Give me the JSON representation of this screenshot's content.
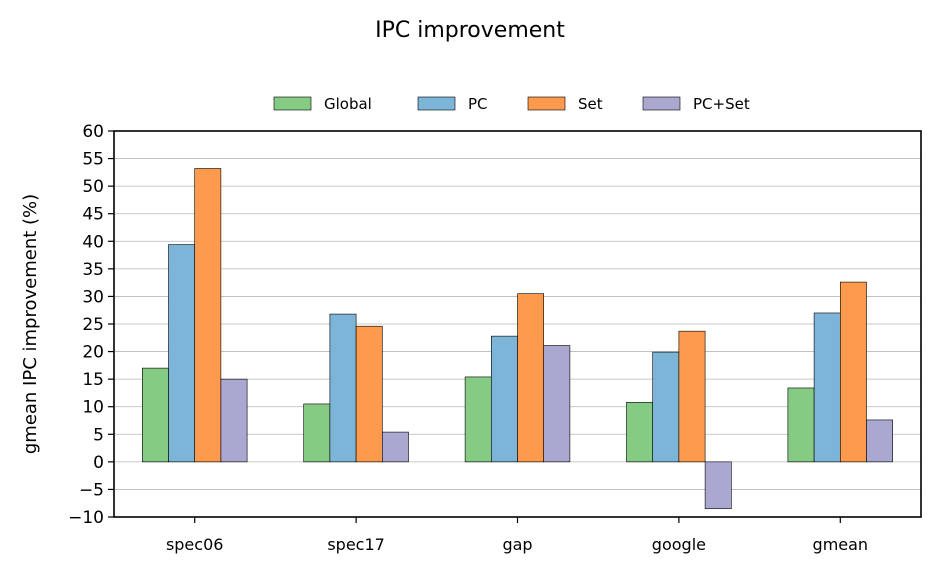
{
  "chart_data": {
    "type": "bar",
    "title": "IPC improvement",
    "xlabel": "",
    "ylabel": "gmean IPC improvement (%)",
    "categories": [
      "spec06",
      "spec17",
      "gap",
      "google",
      "gmean"
    ],
    "series": [
      {
        "name": "Global",
        "color": "#86cb83",
        "values": [
          17.0,
          10.5,
          15.4,
          10.8,
          13.4
        ]
      },
      {
        "name": "PC",
        "color": "#7db5d8",
        "values": [
          39.4,
          26.8,
          22.8,
          19.9,
          27.0
        ]
      },
      {
        "name": "Set",
        "color": "#fd9a4d",
        "values": [
          53.2,
          24.6,
          30.5,
          23.7,
          32.6
        ]
      },
      {
        "name": "PC+Set",
        "color": "#aaa7d1",
        "values": [
          15.0,
          5.4,
          21.1,
          -8.5,
          7.6
        ]
      }
    ],
    "ylim": [
      -10,
      60
    ],
    "yticks": [
      -10,
      -5,
      0,
      5,
      10,
      15,
      20,
      25,
      30,
      35,
      40,
      45,
      50,
      55,
      60
    ],
    "ytick_labels": [
      "−10",
      "−5",
      "0",
      "5",
      "10",
      "15",
      "20",
      "25",
      "30",
      "35",
      "40",
      "45",
      "50",
      "55",
      "60"
    ],
    "grid": "horizontal",
    "legend_position": "top-center"
  }
}
